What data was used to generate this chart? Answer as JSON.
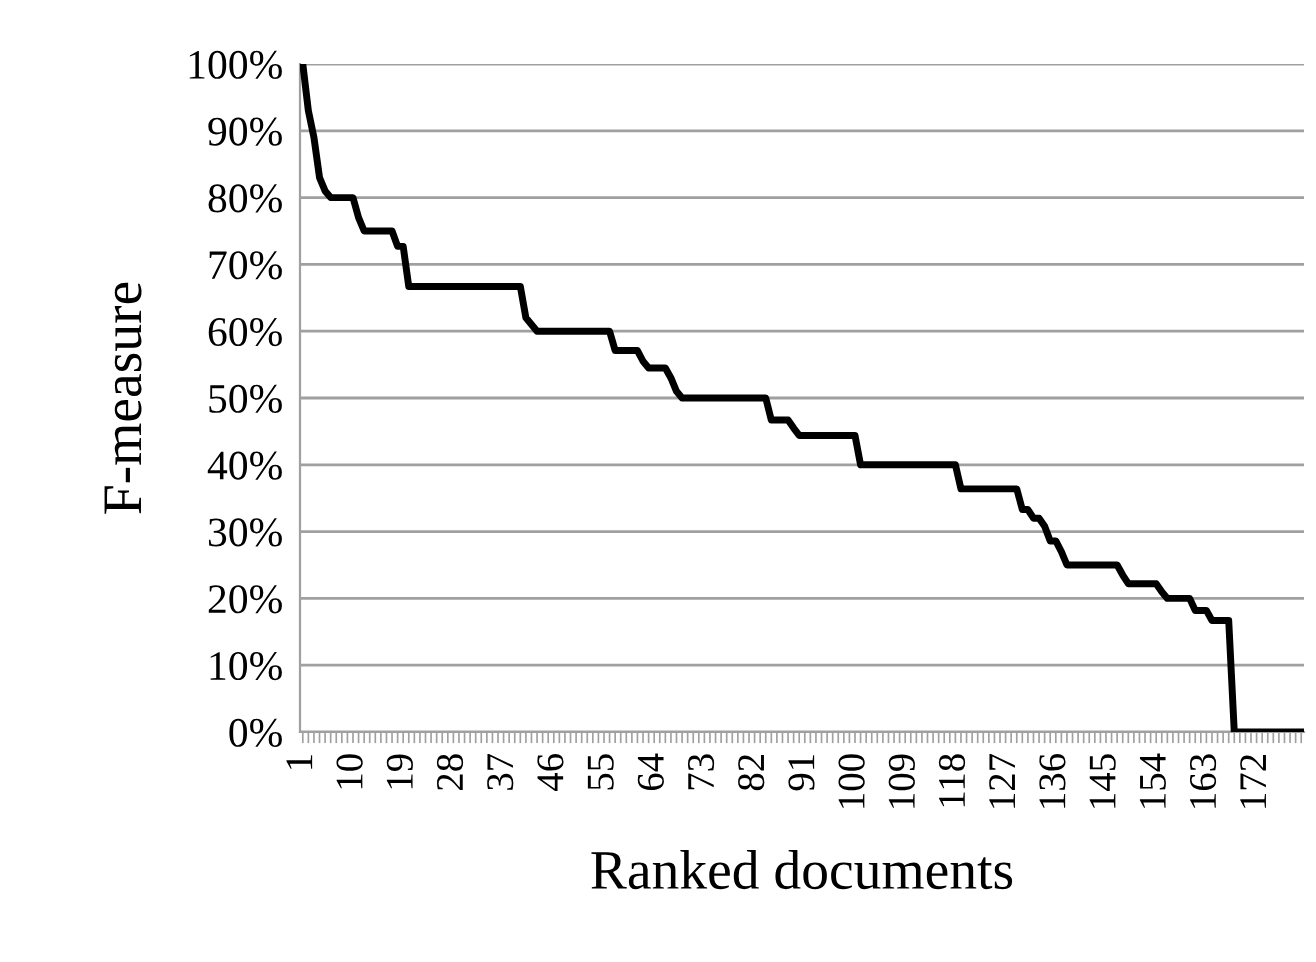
{
  "chart_data": {
    "type": "line",
    "xlabel": "Ranked documents",
    "ylabel": "F-measure",
    "categories": [
      "1",
      null,
      null,
      null,
      null,
      null,
      null,
      null,
      null,
      "10",
      null,
      null,
      null,
      null,
      null,
      null,
      null,
      null,
      "19",
      null,
      null,
      null,
      null,
      null,
      null,
      null,
      null,
      "28",
      null,
      null,
      null,
      null,
      null,
      null,
      null,
      null,
      "37",
      null,
      null,
      null,
      null,
      null,
      null,
      null,
      null,
      "46",
      null,
      null,
      null,
      null,
      null,
      null,
      null,
      null,
      "55",
      null,
      null,
      null,
      null,
      null,
      null,
      null,
      null,
      "64",
      null,
      null,
      null,
      null,
      null,
      null,
      null,
      null,
      "73",
      null,
      null,
      null,
      null,
      null,
      null,
      null,
      null,
      "82",
      null,
      null,
      null,
      null,
      null,
      null,
      null,
      null,
      "91",
      null,
      null,
      null,
      null,
      null,
      null,
      null,
      null,
      "100",
      null,
      null,
      null,
      null,
      null,
      null,
      null,
      null,
      "109",
      null,
      null,
      null,
      null,
      null,
      null,
      null,
      null,
      "118",
      null,
      null,
      null,
      null,
      null,
      null,
      null,
      null,
      "127",
      null,
      null,
      null,
      null,
      null,
      null,
      null,
      null,
      "136",
      null,
      null,
      null,
      null,
      null,
      null,
      null,
      null,
      "145",
      null,
      null,
      null,
      null,
      null,
      null,
      null,
      null,
      "154",
      null,
      null,
      null,
      null,
      null,
      null,
      null,
      null,
      "163",
      null,
      null,
      null,
      null,
      null,
      null,
      null,
      null,
      "172",
      null,
      null,
      null,
      null,
      null,
      null,
      null,
      null
    ],
    "series": [
      {
        "color": "#000000",
        "values": [
          100,
          93,
          89,
          83,
          81,
          80,
          80,
          80,
          80,
          80,
          77,
          75,
          75,
          75,
          75,
          75,
          75,
          72.7,
          72.7,
          66.7,
          66.7,
          66.7,
          66.7,
          66.7,
          66.7,
          66.7,
          66.7,
          66.7,
          66.7,
          66.7,
          66.7,
          66.7,
          66.7,
          66.7,
          66.7,
          66.7,
          66.7,
          66.7,
          66.7,
          66.7,
          62,
          61,
          60,
          60,
          60,
          60,
          60,
          60,
          60,
          60,
          60,
          60,
          60,
          60,
          60,
          60,
          57.1,
          57.1,
          57.1,
          57.1,
          57.1,
          55.5,
          54.5,
          54.5,
          54.5,
          54.5,
          53,
          51,
          50,
          50,
          50,
          50,
          50,
          50,
          50,
          50,
          50,
          50,
          50,
          50,
          50,
          50,
          50,
          50,
          46.7,
          46.7,
          46.7,
          46.7,
          45.5,
          44.4,
          44.4,
          44.4,
          44.4,
          44.4,
          44.4,
          44.4,
          44.4,
          44.4,
          44.4,
          44.4,
          40,
          40,
          40,
          40,
          40,
          40,
          40,
          40,
          40,
          40,
          40,
          40,
          40,
          40,
          40,
          40,
          40,
          40,
          36.4,
          36.4,
          36.4,
          36.4,
          36.4,
          36.4,
          36.4,
          36.4,
          36.4,
          36.4,
          36.4,
          33.3,
          33.3,
          32,
          32,
          30.8,
          28.6,
          28.6,
          27,
          25,
          25,
          25,
          25,
          25,
          25,
          25,
          25,
          25,
          25,
          23.5,
          22.2,
          22.2,
          22.2,
          22.2,
          22.2,
          22.2,
          21,
          20,
          20,
          20,
          20,
          20,
          18.2,
          18.2,
          18.2,
          16.7,
          16.7,
          16.7,
          16.7,
          0,
          0,
          0,
          0,
          0,
          0,
          0,
          0,
          0,
          0,
          0,
          0,
          0
        ]
      }
    ],
    "ylim": [
      0,
      100
    ],
    "yticks": [
      {
        "value": 0,
        "label": "0%"
      },
      {
        "value": 10,
        "label": "10%"
      },
      {
        "value": 20,
        "label": "20%"
      },
      {
        "value": 30,
        "label": "30%"
      },
      {
        "value": 40,
        "label": "40%"
      },
      {
        "value": 50,
        "label": "50%"
      },
      {
        "value": 60,
        "label": "60%"
      },
      {
        "value": 70,
        "label": "70%"
      },
      {
        "value": 80,
        "label": "80%"
      },
      {
        "value": 90,
        "label": "90%"
      },
      {
        "value": 100,
        "label": "100%"
      }
    ],
    "grid": "y",
    "marker": "none",
    "line_style": "solid"
  }
}
